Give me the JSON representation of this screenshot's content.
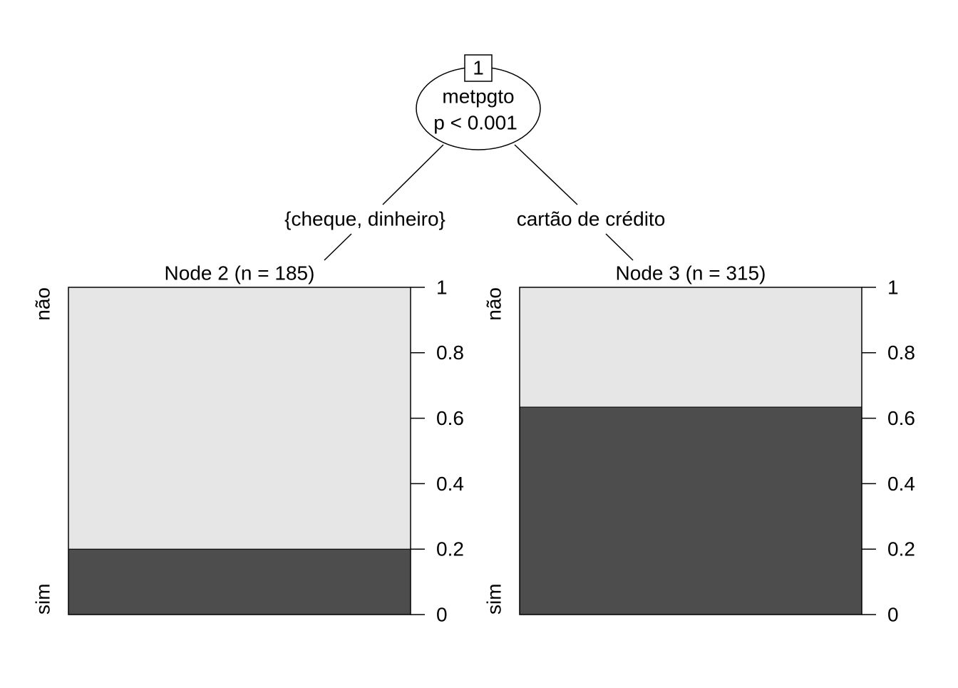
{
  "tree": {
    "node_id": "1",
    "variable": "metpgto",
    "p_value": "p < 0.001",
    "edges": [
      "{cheque, dinheiro}",
      "cartão de crédito"
    ]
  },
  "chart_data": [
    {
      "type": "stacked-bar",
      "title": "Node 2 (n = 185)",
      "series": [
        {
          "name": "sim",
          "color": "#4d4d4d",
          "values": [
            0.2
          ]
        },
        {
          "name": "não",
          "color": "#e6e6e6",
          "values": [
            0.8
          ]
        }
      ],
      "ylim": [
        0,
        1
      ],
      "yticks": [
        0,
        0.2,
        0.4,
        0.6,
        0.8,
        1
      ]
    },
    {
      "type": "stacked-bar",
      "title": "Node 3 (n = 315)",
      "series": [
        {
          "name": "sim",
          "color": "#4d4d4d",
          "values": [
            0.634
          ]
        },
        {
          "name": "não",
          "color": "#e6e6e6",
          "values": [
            0.366
          ]
        }
      ],
      "ylim": [
        0,
        1
      ],
      "yticks": [
        0,
        0.2,
        0.4,
        0.6,
        0.8,
        1
      ]
    }
  ]
}
